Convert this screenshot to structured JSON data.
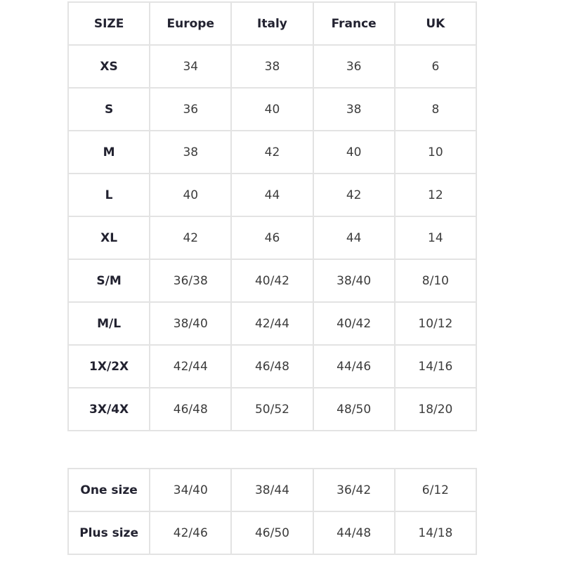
{
  "size_table": {
    "headers": [
      "SIZE",
      "Europe",
      "Italy",
      "France",
      "UK"
    ],
    "rows": [
      [
        "XS",
        "34",
        "38",
        "36",
        "6"
      ],
      [
        "S",
        "36",
        "40",
        "38",
        "8"
      ],
      [
        "M",
        "38",
        "42",
        "40",
        "10"
      ],
      [
        "L",
        "40",
        "44",
        "42",
        "12"
      ],
      [
        "XL",
        "42",
        "46",
        "44",
        "14"
      ],
      [
        "S/M",
        "36/38",
        "40/42",
        "38/40",
        "8/10"
      ],
      [
        "M/L",
        "38/40",
        "42/44",
        "40/42",
        "10/12"
      ],
      [
        "1X/2X",
        "42/44",
        "46/48",
        "44/46",
        "14/16"
      ],
      [
        "3X/4X",
        "46/48",
        "50/52",
        "48/50",
        "18/20"
      ]
    ]
  },
  "extra_table": {
    "rows": [
      [
        "One size",
        "34/40",
        "38/44",
        "36/42",
        "6/12"
      ],
      [
        "Plus size",
        "42/46",
        "46/50",
        "44/48",
        "14/18"
      ]
    ]
  }
}
